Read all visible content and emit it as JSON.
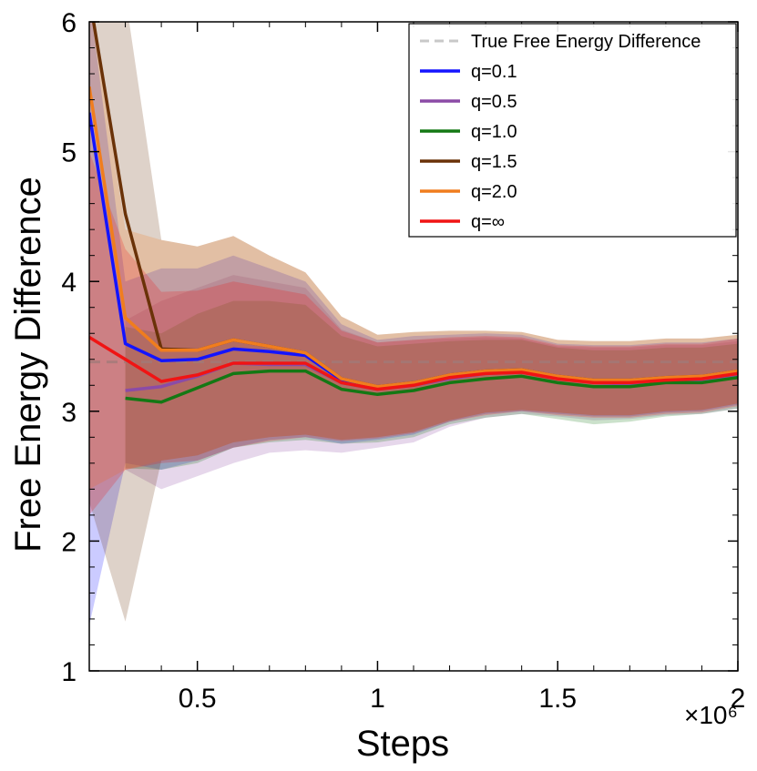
{
  "chart_data": {
    "type": "line",
    "xlabel": "Steps",
    "ylabel": "Free Energy Difference",
    "x_scale_label": "×10⁶",
    "xlim": [
      0.2,
      2.0
    ],
    "ylim": [
      1,
      6
    ],
    "x_ticks": [
      0.5,
      1,
      1.5,
      2
    ],
    "x_tick_labels": [
      "0.5",
      "1",
      "1.5",
      "2"
    ],
    "y_ticks": [
      1,
      2,
      3,
      4,
      5,
      6
    ],
    "y_tick_labels": [
      "1",
      "2",
      "3",
      "4",
      "5",
      "6"
    ],
    "reference_line": {
      "name": "True Free Energy Difference",
      "value": 3.38,
      "color": "#c8c8c8"
    },
    "x": [
      0.2,
      0.3,
      0.4,
      0.5,
      0.6,
      0.7,
      0.8,
      0.9,
      1.0,
      1.1,
      1.2,
      1.3,
      1.4,
      1.5,
      1.6,
      1.7,
      1.8,
      1.9,
      2.0
    ],
    "series": [
      {
        "name": "q=0.1",
        "color": "#1414ff",
        "values": [
          5.3,
          3.52,
          3.39,
          3.4,
          3.48,
          3.46,
          3.43,
          3.24,
          3.18,
          3.21,
          3.27,
          3.3,
          3.31,
          3.26,
          3.23,
          3.23,
          3.25,
          3.26,
          3.3
        ],
        "lower": [
          1.35,
          2.6,
          2.55,
          2.62,
          2.72,
          2.78,
          2.8,
          2.75,
          2.78,
          2.82,
          2.92,
          2.98,
          3.0,
          2.98,
          2.96,
          2.96,
          2.99,
          3.0,
          3.05
        ],
        "upper": [
          6.2,
          4.0,
          4.1,
          4.1,
          4.2,
          4.1,
          4.0,
          3.67,
          3.55,
          3.58,
          3.59,
          3.6,
          3.59,
          3.52,
          3.51,
          3.51,
          3.53,
          3.53,
          3.56
        ]
      },
      {
        "name": "q=0.5",
        "color": "#8b4ba6",
        "values": [
          null,
          3.16,
          3.19,
          3.27,
          3.37,
          3.36,
          3.36,
          3.22,
          3.17,
          3.2,
          3.25,
          3.29,
          3.3,
          3.25,
          3.22,
          3.21,
          3.24,
          3.24,
          3.28
        ],
        "lower": [
          null,
          2.55,
          2.4,
          2.5,
          2.6,
          2.68,
          2.7,
          2.68,
          2.72,
          2.76,
          2.88,
          2.95,
          2.98,
          2.96,
          2.93,
          2.94,
          2.97,
          2.98,
          3.02
        ],
        "upper": [
          null,
          3.7,
          3.85,
          3.95,
          4.05,
          4.0,
          3.95,
          3.63,
          3.53,
          3.55,
          3.56,
          3.57,
          3.56,
          3.5,
          3.49,
          3.49,
          3.51,
          3.51,
          3.54
        ]
      },
      {
        "name": "q=1.0",
        "color": "#147814",
        "values": [
          null,
          3.1,
          3.07,
          3.18,
          3.29,
          3.31,
          3.31,
          3.17,
          3.13,
          3.16,
          3.22,
          3.25,
          3.27,
          3.22,
          3.19,
          3.19,
          3.22,
          3.22,
          3.26
        ],
        "lower": [
          null,
          2.56,
          2.55,
          2.6,
          2.72,
          2.76,
          2.78,
          2.75,
          2.76,
          2.8,
          2.9,
          2.95,
          2.98,
          2.94,
          2.9,
          2.92,
          2.96,
          2.98,
          3.02
        ],
        "upper": [
          null,
          3.65,
          3.6,
          3.75,
          3.85,
          3.85,
          3.82,
          3.58,
          3.5,
          3.52,
          3.54,
          3.55,
          3.55,
          3.49,
          3.47,
          3.47,
          3.49,
          3.49,
          3.52
        ]
      },
      {
        "name": "q=1.5",
        "color": "#6a3208",
        "values": [
          6.2,
          4.52,
          3.48,
          3.47,
          3.55,
          3.5,
          3.45,
          3.25,
          3.19,
          3.22,
          3.28,
          3.31,
          3.32,
          3.27,
          3.24,
          3.24,
          3.26,
          3.27,
          3.31
        ],
        "lower": [
          2.3,
          1.38,
          2.62,
          2.66,
          2.76,
          2.8,
          2.82,
          2.78,
          2.8,
          2.84,
          2.93,
          2.99,
          3.01,
          2.99,
          2.97,
          2.97,
          3.0,
          3.01,
          3.06
        ],
        "upper": [
          6.5,
          6.5,
          4.32,
          4.27,
          4.35,
          4.2,
          4.07,
          3.73,
          3.59,
          3.61,
          3.62,
          3.62,
          3.61,
          3.55,
          3.54,
          3.54,
          3.56,
          3.56,
          3.59
        ]
      },
      {
        "name": "q=2.0",
        "color": "#f07d1e",
        "values": [
          5.5,
          3.72,
          3.47,
          3.47,
          3.55,
          3.5,
          3.45,
          3.25,
          3.19,
          3.22,
          3.28,
          3.31,
          3.32,
          3.27,
          3.24,
          3.24,
          3.26,
          3.27,
          3.31
        ],
        "lower": [
          2.4,
          2.55,
          2.62,
          2.66,
          2.76,
          2.8,
          2.82,
          2.78,
          2.8,
          2.84,
          2.93,
          2.99,
          3.01,
          2.99,
          2.97,
          2.97,
          3.0,
          3.01,
          3.06
        ],
        "upper": [
          6.4,
          4.4,
          4.32,
          4.27,
          4.35,
          4.2,
          4.07,
          3.73,
          3.59,
          3.61,
          3.62,
          3.62,
          3.61,
          3.55,
          3.54,
          3.54,
          3.56,
          3.56,
          3.59
        ]
      },
      {
        "name": "q=∞",
        "color": "#f01414",
        "values": [
          3.57,
          3.4,
          3.23,
          3.28,
          3.37,
          3.37,
          3.37,
          3.22,
          3.17,
          3.2,
          3.26,
          3.29,
          3.3,
          3.25,
          3.22,
          3.22,
          3.24,
          3.25,
          3.29
        ],
        "lower": [
          2.2,
          2.55,
          2.6,
          2.62,
          2.72,
          2.77,
          2.8,
          2.77,
          2.79,
          2.83,
          2.92,
          2.97,
          3.0,
          2.97,
          2.95,
          2.95,
          2.98,
          2.99,
          3.04
        ],
        "upper": [
          5.0,
          4.25,
          3.92,
          3.93,
          4.0,
          3.95,
          3.9,
          3.62,
          3.53,
          3.55,
          3.57,
          3.58,
          3.57,
          3.51,
          3.5,
          3.5,
          3.52,
          3.52,
          3.56
        ]
      }
    ],
    "legend_position": "top-right"
  }
}
